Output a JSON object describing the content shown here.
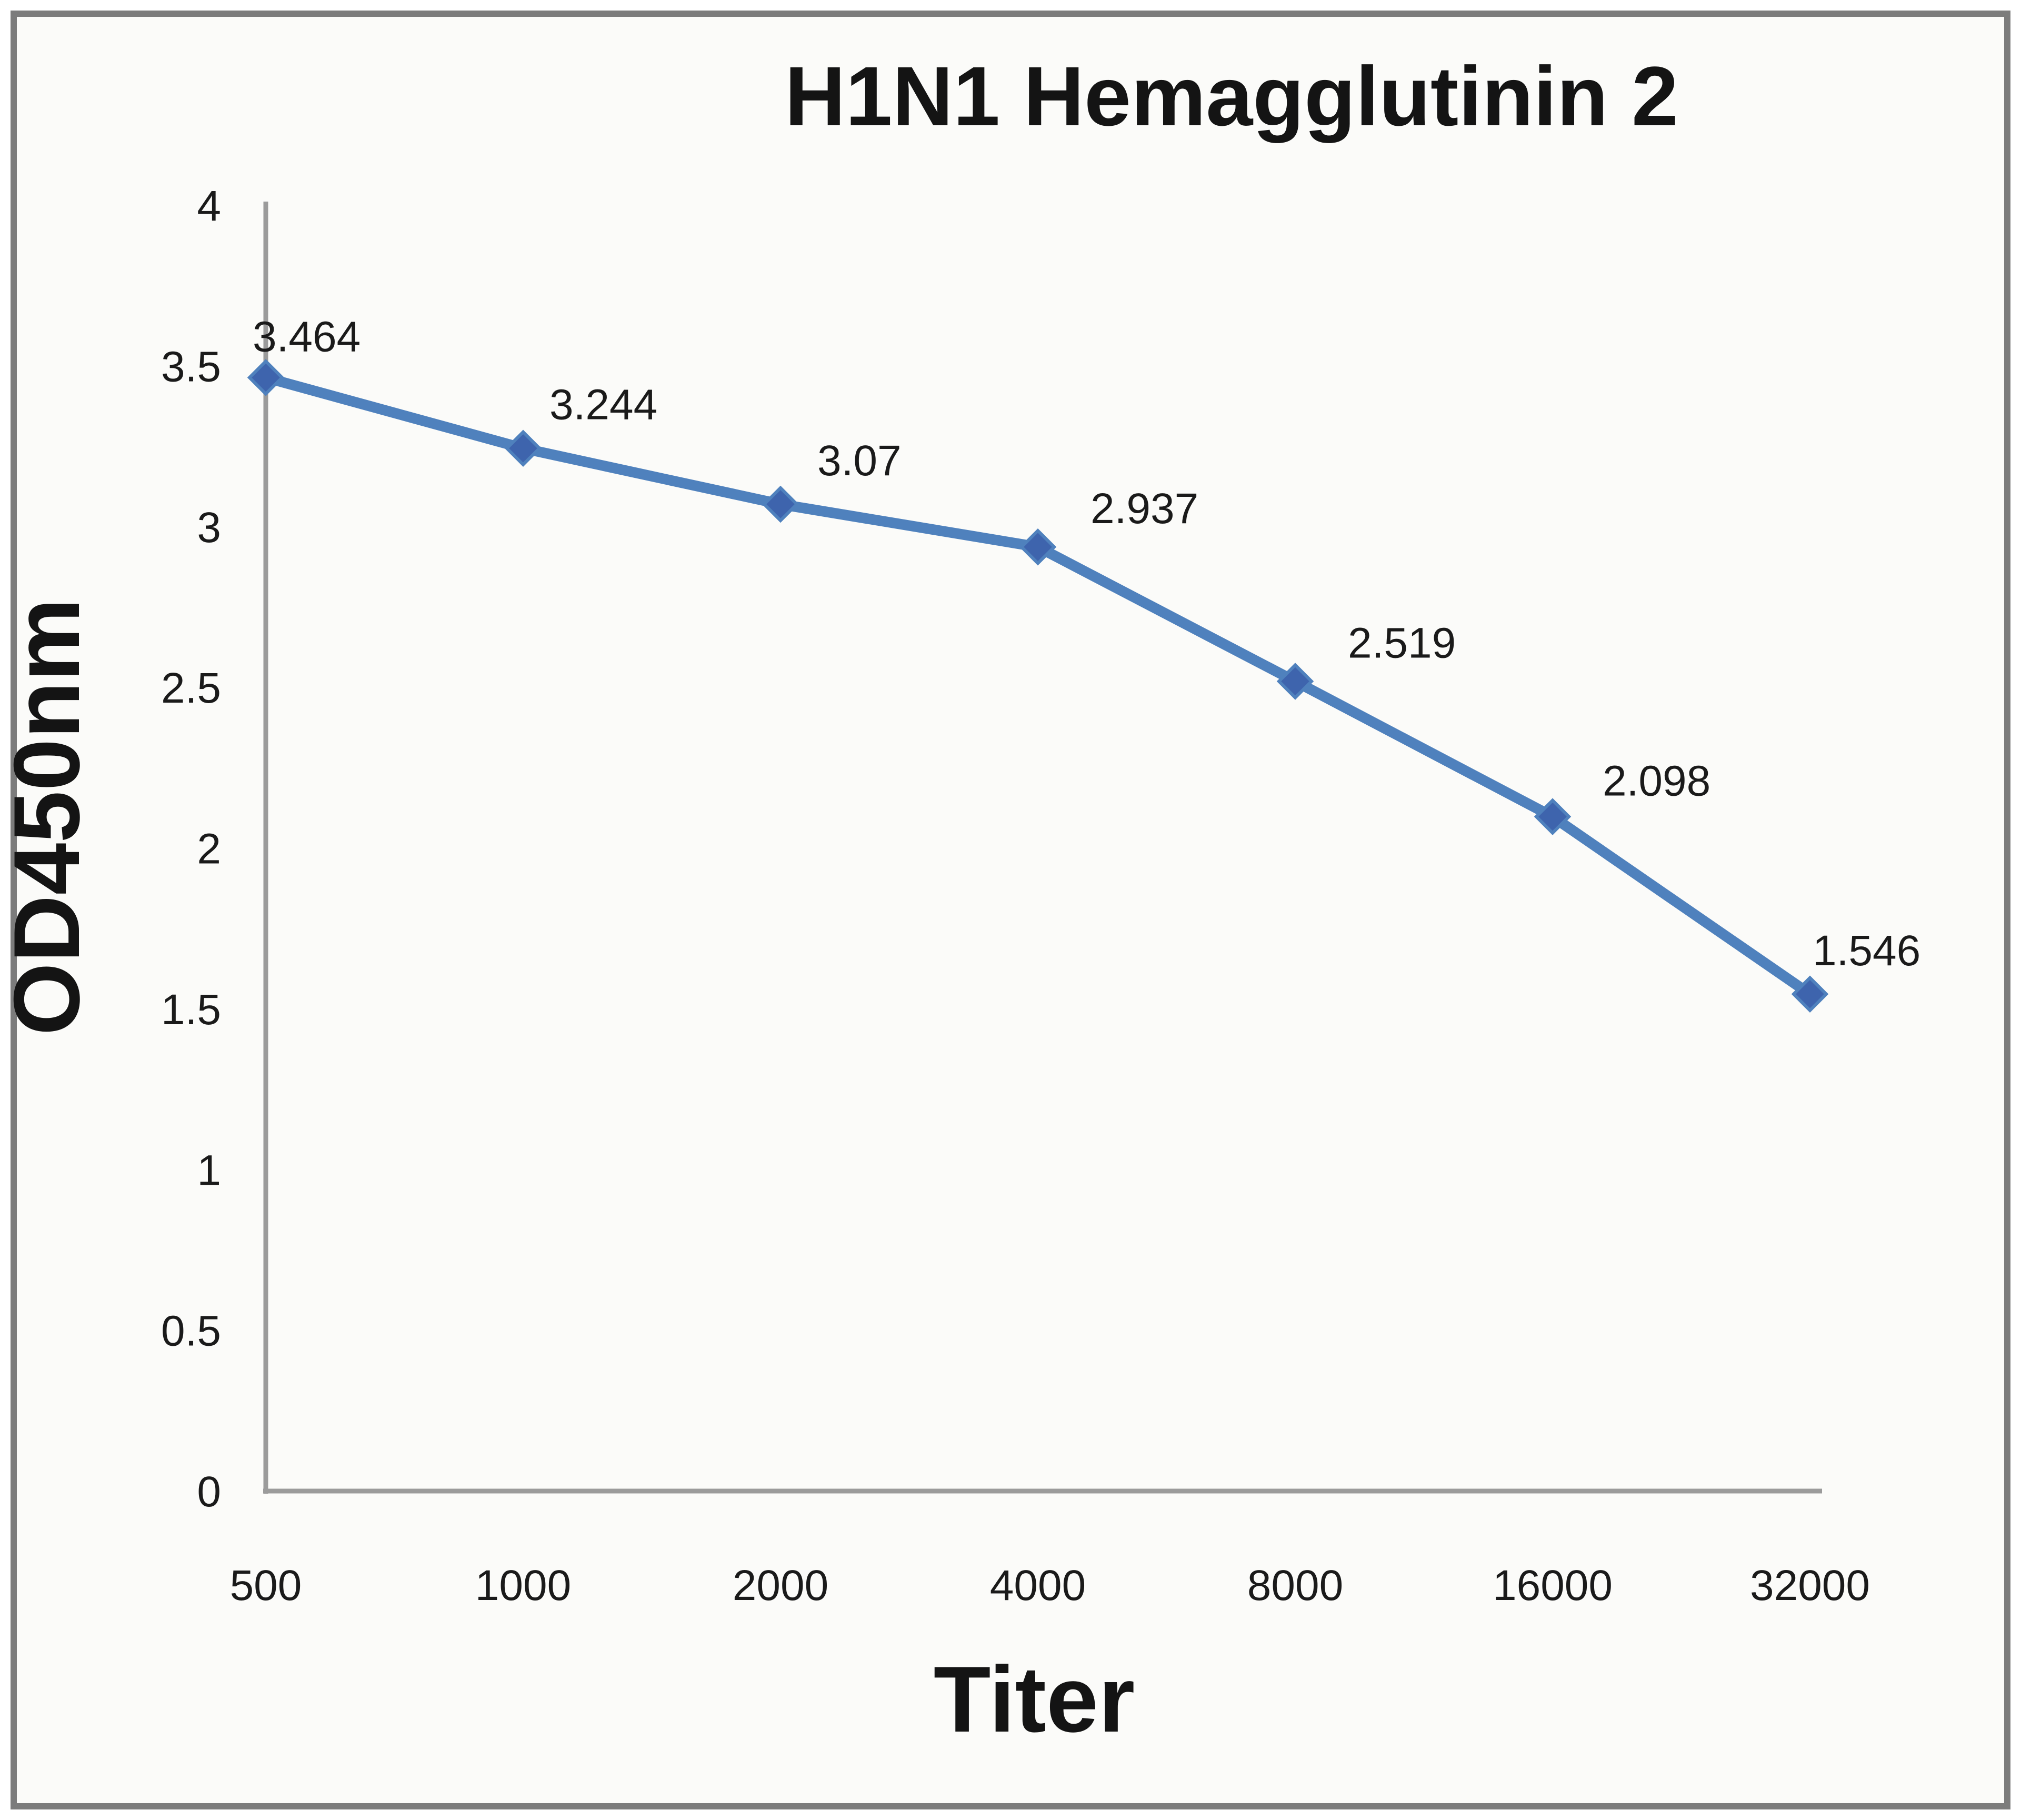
{
  "chart_data": {
    "type": "line",
    "title": "H1N1 Hemagglutinin 2",
    "xlabel": "Titer",
    "ylabel": "OD450nm",
    "categories": [
      "500",
      "1000",
      "2000",
      "4000",
      "8000",
      "16000",
      "32000"
    ],
    "series": [
      {
        "name": "OD450nm",
        "values": [
          3.464,
          3.244,
          3.07,
          2.937,
          2.519,
          2.098,
          1.546
        ]
      }
    ],
    "data_labels": [
      "3.464",
      "3.244",
      "3.07",
      "2.937",
      "2.519",
      "2.098",
      "1.546"
    ],
    "y_ticks": [
      0,
      0.5,
      1,
      1.5,
      2,
      2.5,
      3,
      3.5,
      4
    ],
    "y_tick_labels": [
      "0",
      "0.5",
      "1",
      "1.5",
      "2",
      "2.5",
      "3",
      "3.5",
      "4"
    ],
    "ylim": [
      0,
      4
    ],
    "grid": false,
    "legend": "none",
    "marker": "diamond",
    "colors": {
      "series": "#4f81bd",
      "marker": "#3e64ad",
      "axis": "#9b9b9b",
      "text": "#141414",
      "frame": "#7c7c7c",
      "background": "#fbfbf9"
    }
  }
}
